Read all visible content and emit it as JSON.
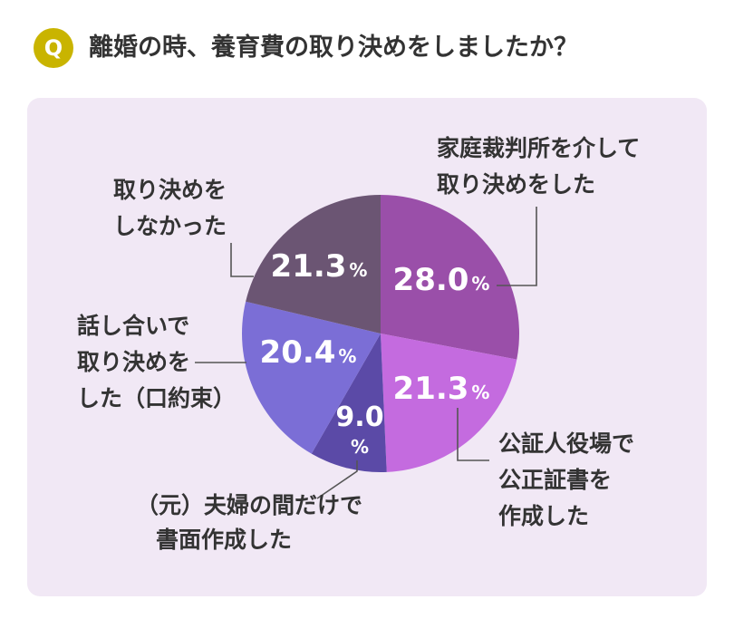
{
  "header": {
    "badge": "Q",
    "question": "離婚の時、養育費の取り決めをしましたか？"
  },
  "colors": {
    "badge": "#c9b400",
    "panel": "#f1e8f5",
    "text": "#333333"
  },
  "chart_data": {
    "type": "pie",
    "title": "",
    "slices": [
      {
        "label_lines": [
          "家庭裁判所を介して",
          "取り決めをした"
        ],
        "value": 28.0,
        "display": "28.0",
        "unit": "%",
        "color": "#9a4fa9"
      },
      {
        "label_lines": [
          "公証人役場で",
          "公正証書を",
          "作成した"
        ],
        "value": 21.3,
        "display": "21.3",
        "unit": "%",
        "color": "#c46bdf"
      },
      {
        "label_lines": [
          "（元）夫婦の間だけで",
          "書面作成した"
        ],
        "value": 9.0,
        "display": "9.0",
        "unit": "%",
        "color": "#5b4aa7"
      },
      {
        "label_lines": [
          "話し合いで",
          "取り決めを",
          "した（口約束）"
        ],
        "value": 20.4,
        "display": "20.4",
        "unit": "%",
        "color": "#7b6ed6"
      },
      {
        "label_lines": [
          "取り決めを",
          "しなかった"
        ],
        "value": 21.3,
        "display": "21.3",
        "unit": "%",
        "color": "#6b5573"
      }
    ]
  }
}
